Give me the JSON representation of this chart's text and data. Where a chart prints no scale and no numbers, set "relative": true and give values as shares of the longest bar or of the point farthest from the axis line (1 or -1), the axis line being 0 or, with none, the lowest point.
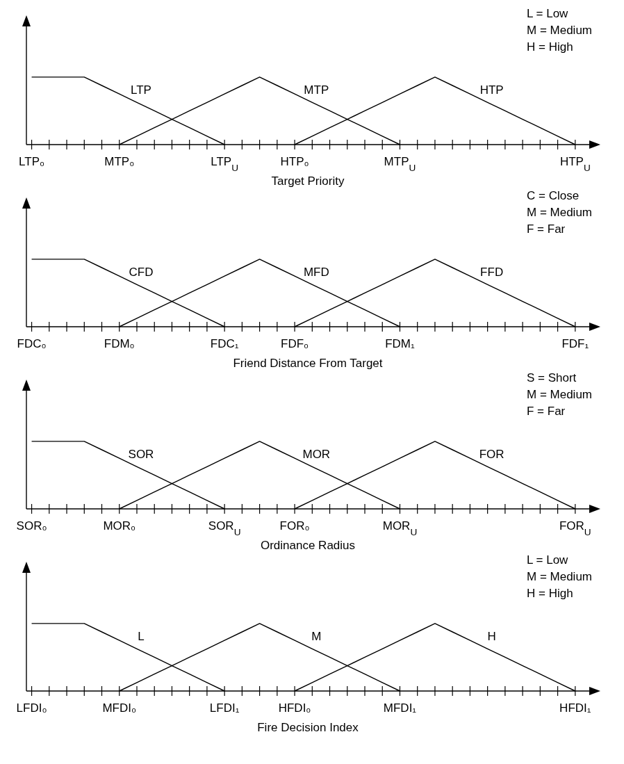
{
  "chart_data": [
    {
      "type": "line",
      "relative": true,
      "xlabel": "Target Priority",
      "annotations": [
        "L = Low",
        "M = Medium",
        "H = High"
      ],
      "categories": [
        "LTP₀",
        null,
        null,
        null,
        null,
        "MTP₀",
        null,
        null,
        null,
        null,
        null,
        "LTP$_{U}$",
        null,
        null,
        null,
        "HTP₀",
        null,
        null,
        null,
        null,
        null,
        "MTP$_{U}$",
        null,
        null,
        null,
        null,
        null,
        null,
        null,
        null,
        null,
        "HTP$_{U}$"
      ],
      "series": [
        {
          "name": "LTP",
          "color": "#000000",
          "values": [
            1,
            1,
            1,
            1,
            0.875,
            0.75,
            0.625,
            0.5,
            0.375,
            0.25,
            0.125,
            0,
            null,
            null,
            null,
            null,
            null,
            null,
            null,
            null,
            null,
            null,
            null,
            null,
            null,
            null,
            null,
            null,
            null,
            null,
            null,
            null
          ]
        },
        {
          "name": "MTP",
          "color": "#000000",
          "values": [
            null,
            null,
            null,
            null,
            null,
            0,
            0.125,
            0.25,
            0.375,
            0.5,
            0.625,
            0.75,
            0.875,
            1,
            0.875,
            0.75,
            0.625,
            0.5,
            0.375,
            0.25,
            0.125,
            0,
            null,
            null,
            null,
            null,
            null,
            null,
            null,
            null,
            null,
            null
          ]
        },
        {
          "name": "HTP",
          "color": "#000000",
          "values": [
            null,
            null,
            null,
            null,
            null,
            null,
            null,
            null,
            null,
            null,
            null,
            null,
            null,
            null,
            null,
            0,
            0.125,
            0.25,
            0.375,
            0.5,
            0.625,
            0.75,
            0.875,
            1,
            0.875,
            0.75,
            0.625,
            0.5,
            0.375,
            0.25,
            0.125,
            0
          ]
        }
      ]
    },
    {
      "type": "line",
      "relative": true,
      "xlabel": "Friend Distance From Target",
      "annotations": [
        "C = Close",
        "M = Medium",
        "F = Far"
      ],
      "categories": [
        "FDC₀",
        null,
        null,
        null,
        null,
        "FDM₀",
        null,
        null,
        null,
        null,
        null,
        "FDC₁",
        null,
        null,
        null,
        "FDF₀",
        null,
        null,
        null,
        null,
        null,
        "FDM₁",
        null,
        null,
        null,
        null,
        null,
        null,
        null,
        null,
        null,
        "FDF₁"
      ],
      "series": [
        {
          "name": "CFD",
          "color": "#000000",
          "values": [
            1,
            1,
            1,
            1,
            0.875,
            0.75,
            0.625,
            0.5,
            0.375,
            0.25,
            0.125,
            0,
            null,
            null,
            null,
            null,
            null,
            null,
            null,
            null,
            null,
            null,
            null,
            null,
            null,
            null,
            null,
            null,
            null,
            null,
            null,
            null
          ]
        },
        {
          "name": "MFD",
          "color": "#000000",
          "values": [
            null,
            null,
            null,
            null,
            null,
            0,
            0.125,
            0.25,
            0.375,
            0.5,
            0.625,
            0.75,
            0.875,
            1,
            0.875,
            0.75,
            0.625,
            0.5,
            0.375,
            0.25,
            0.125,
            0,
            null,
            null,
            null,
            null,
            null,
            null,
            null,
            null,
            null,
            null
          ]
        },
        {
          "name": "FFD",
          "color": "#000000",
          "values": [
            null,
            null,
            null,
            null,
            null,
            null,
            null,
            null,
            null,
            null,
            null,
            null,
            null,
            null,
            null,
            0,
            0.125,
            0.25,
            0.375,
            0.5,
            0.625,
            0.75,
            0.875,
            1,
            0.875,
            0.75,
            0.625,
            0.5,
            0.375,
            0.25,
            0.125,
            0
          ]
        }
      ]
    },
    {
      "type": "line",
      "relative": true,
      "xlabel": "Ordinance Radius",
      "annotations": [
        "S = Short",
        "M = Medium",
        "F = Far"
      ],
      "categories": [
        "SOR₀",
        null,
        null,
        null,
        null,
        "MOR₀",
        null,
        null,
        null,
        null,
        null,
        "SOR$_{U}$",
        null,
        null,
        null,
        "FOR₀",
        null,
        null,
        null,
        null,
        null,
        "MOR$_{U}$",
        null,
        null,
        null,
        null,
        null,
        null,
        null,
        null,
        null,
        "FOR$_{U}$"
      ],
      "series": [
        {
          "name": "SOR",
          "color": "#000000",
          "values": [
            1,
            1,
            1,
            1,
            0.875,
            0.75,
            0.625,
            0.5,
            0.375,
            0.25,
            0.125,
            0,
            null,
            null,
            null,
            null,
            null,
            null,
            null,
            null,
            null,
            null,
            null,
            null,
            null,
            null,
            null,
            null,
            null,
            null,
            null,
            null
          ]
        },
        {
          "name": "MOR",
          "color": "#000000",
          "values": [
            null,
            null,
            null,
            null,
            null,
            0,
            0.125,
            0.25,
            0.375,
            0.5,
            0.625,
            0.75,
            0.875,
            1,
            0.875,
            0.75,
            0.625,
            0.5,
            0.375,
            0.25,
            0.125,
            0,
            null,
            null,
            null,
            null,
            null,
            null,
            null,
            null,
            null,
            null
          ]
        },
        {
          "name": "FOR",
          "color": "#000000",
          "values": [
            null,
            null,
            null,
            null,
            null,
            null,
            null,
            null,
            null,
            null,
            null,
            null,
            null,
            null,
            null,
            0,
            0.125,
            0.25,
            0.375,
            0.5,
            0.625,
            0.75,
            0.875,
            1,
            0.875,
            0.75,
            0.625,
            0.5,
            0.375,
            0.25,
            0.125,
            0
          ]
        }
      ]
    },
    {
      "type": "line",
      "relative": true,
      "xlabel": "Fire Decision Index",
      "annotations": [
        "L = Low",
        "M = Medium",
        "H = High"
      ],
      "categories": [
        "LFDI₀",
        null,
        null,
        null,
        null,
        "MFDI₀",
        null,
        null,
        null,
        null,
        null,
        "LFDI₁",
        null,
        null,
        null,
        "HFDI₀",
        null,
        null,
        null,
        null,
        null,
        "MFDI₁",
        null,
        null,
        null,
        null,
        null,
        null,
        null,
        null,
        null,
        "HFDI₁"
      ],
      "series": [
        {
          "name": "L",
          "color": "#000000",
          "values": [
            1,
            1,
            1,
            1,
            0.875,
            0.75,
            0.625,
            0.5,
            0.375,
            0.25,
            0.125,
            0,
            null,
            null,
            null,
            null,
            null,
            null,
            null,
            null,
            null,
            null,
            null,
            null,
            null,
            null,
            null,
            null,
            null,
            null,
            null,
            null
          ]
        },
        {
          "name": "M",
          "color": "#000000",
          "values": [
            null,
            null,
            null,
            null,
            null,
            0,
            0.125,
            0.25,
            0.375,
            0.5,
            0.625,
            0.75,
            0.875,
            1,
            0.875,
            0.75,
            0.625,
            0.5,
            0.375,
            0.25,
            0.125,
            0,
            null,
            null,
            null,
            null,
            null,
            null,
            null,
            null,
            null,
            null
          ]
        },
        {
          "name": "H",
          "color": "#000000",
          "values": [
            null,
            null,
            null,
            null,
            null,
            null,
            null,
            null,
            null,
            null,
            null,
            null,
            null,
            null,
            null,
            0,
            0.125,
            0.25,
            0.375,
            0.5,
            0.625,
            0.75,
            0.875,
            1,
            0.875,
            0.75,
            0.625,
            0.5,
            0.375,
            0.25,
            0.125,
            0
          ]
        }
      ]
    }
  ]
}
